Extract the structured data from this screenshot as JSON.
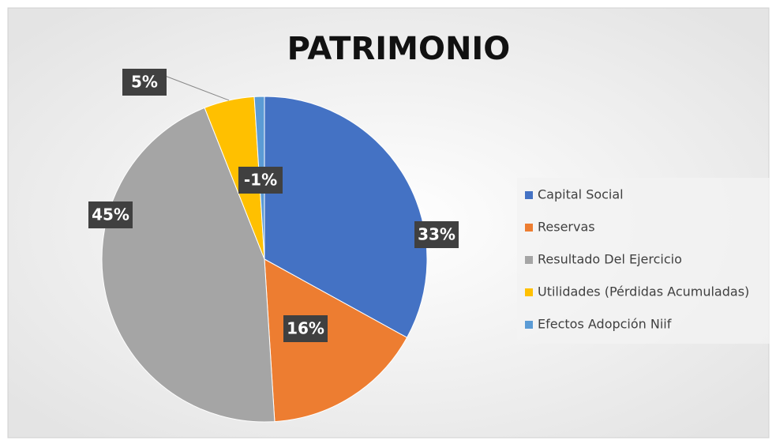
{
  "chart_data": {
    "type": "pie",
    "title": "PATRIMONIO",
    "categories": [
      "Capital Social",
      "Reservas",
      "Resultado Del Ejercicio",
      "Utilidades (Pérdidas Acumuladas)",
      "Efectos Adopción Niif"
    ],
    "values": [
      33,
      16,
      45,
      5,
      -1
    ],
    "value_labels": [
      "33%",
      "16%",
      "45%",
      "5%",
      "-1%"
    ],
    "colors": [
      "#4472c4",
      "#ed7d31",
      "#a5a5a5",
      "#ffc000",
      "#5b9bd5"
    ],
    "legend": "right"
  }
}
